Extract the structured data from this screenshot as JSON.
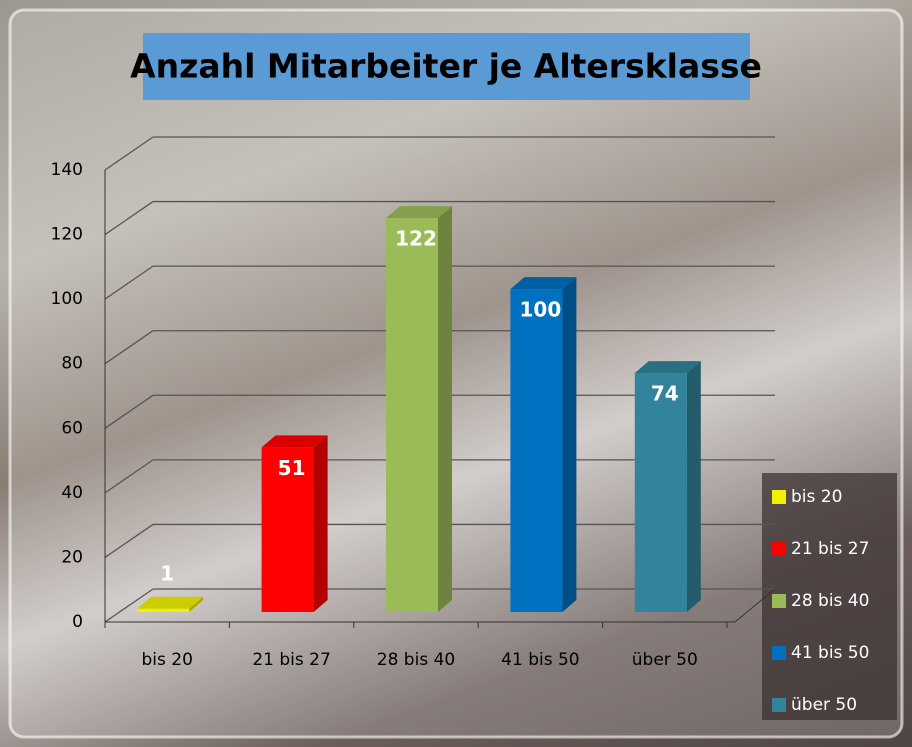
{
  "chart_data": {
    "type": "bar3d",
    "title": "Anzahl Mitarbeiter je Altersklasse",
    "categories": [
      "bis 20",
      "21 bis 27",
      "28 bis 40",
      "41 bis 50",
      "über 50"
    ],
    "values": [
      1,
      51,
      122,
      100,
      74
    ],
    "colors": [
      "#f0f000",
      "#ff0000",
      "#9bbb59",
      "#0070c0",
      "#31849b"
    ],
    "ylim": [
      0,
      140
    ],
    "yticks": [
      0,
      20,
      40,
      60,
      80,
      100,
      120,
      140
    ],
    "grid": true,
    "legend": "right"
  }
}
